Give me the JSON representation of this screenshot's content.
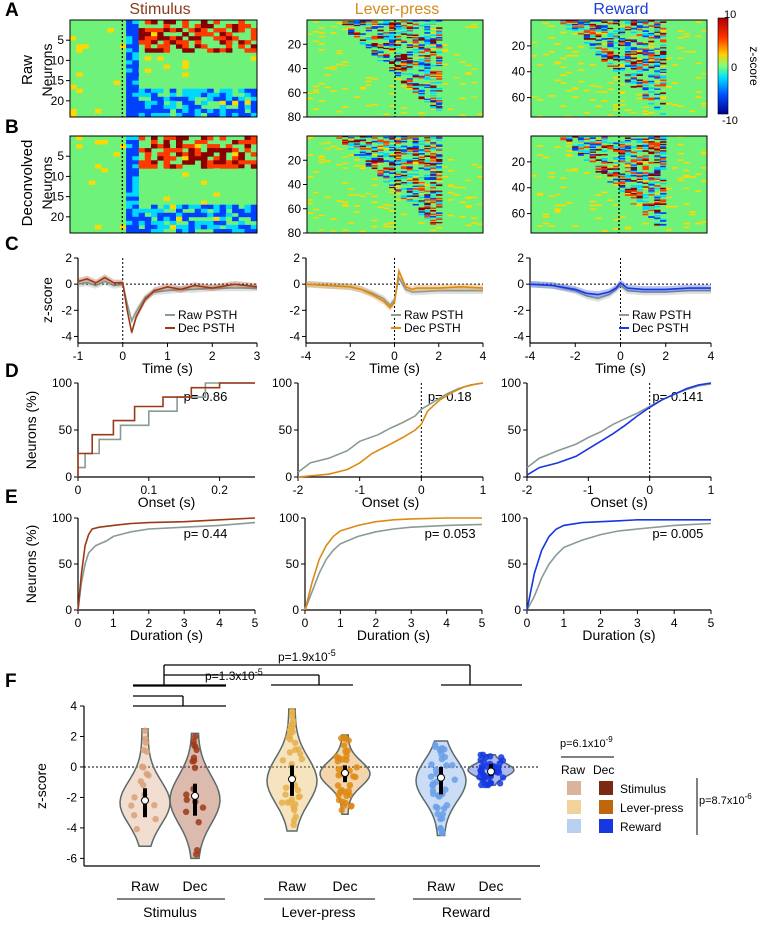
{
  "panel_letters": [
    "A",
    "B",
    "C",
    "D",
    "E",
    "F"
  ],
  "columns": [
    {
      "title": "Stimulus",
      "color": "#8b3a1a"
    },
    {
      "title": "Lever-press",
      "color": "#d68a1c"
    },
    {
      "title": "Reward",
      "color": "#1a3fd6"
    }
  ],
  "colors": {
    "raw": "#8a9a96",
    "stim_dec": "#9c3a18",
    "lever_dec": "#dd8a14",
    "reward_dec": "#1538e0",
    "stim_raw_violin": "#d9a17a",
    "lever_raw_violin": "#e6b04a",
    "reward_raw_violin": "#6a9fe6"
  },
  "row_labels": {
    "raw": "Raw",
    "deconvolved": "Deconvolved",
    "neurons": "Neurons",
    "zscore": "z-score",
    "neurons_pct": "Neurons (%)"
  },
  "colorbar": {
    "label": "z-score",
    "max": "10",
    "mid": "0",
    "min": "-10"
  },
  "heatmaps": [
    {
      "yticks": [
        "5",
        "10",
        "15",
        "20"
      ]
    },
    {
      "yticks": [
        "20",
        "40",
        "60",
        "80"
      ]
    },
    {
      "yticks": [
        "20",
        "40",
        "60"
      ]
    }
  ],
  "chart_data": [
    {
      "panel": "C",
      "type": "line",
      "title": "Stimulus",
      "xlabel": "Time (s)",
      "ylabel": "z-score",
      "xlim": [
        -1,
        3
      ],
      "ylim": [
        -4.5,
        2
      ],
      "xticks": [
        "-1",
        "0",
        "1",
        "2",
        "3"
      ],
      "yticks": [
        "2",
        "0",
        "-2",
        "-4"
      ],
      "legend": [
        "Raw PSTH",
        "Dec PSTH"
      ],
      "series": [
        {
          "name": "Raw PSTH",
          "x": [
            -1,
            -0.8,
            -0.6,
            -0.4,
            -0.2,
            0,
            0.1,
            0.2,
            0.3,
            0.5,
            0.7,
            1,
            1.3,
            1.6,
            2,
            2.5,
            3
          ],
          "y": [
            0,
            0.1,
            -0.1,
            0.2,
            -0.1,
            0,
            -1.5,
            -2.8,
            -2.1,
            -1,
            -0.6,
            -0.5,
            -0.4,
            -0.4,
            -0.3,
            -0.3,
            -0.3
          ]
        },
        {
          "name": "Dec PSTH",
          "x": [
            -1,
            -0.8,
            -0.6,
            -0.4,
            -0.2,
            0,
            0.1,
            0.2,
            0.3,
            0.5,
            0.7,
            1,
            1.3,
            1.6,
            2,
            2.5,
            3
          ],
          "y": [
            0.2,
            0.4,
            0.1,
            0.5,
            0.1,
            0.1,
            -2,
            -3.7,
            -2.5,
            -1.2,
            -0.5,
            -0.2,
            -0.4,
            -0.1,
            -0.3,
            0,
            -0.2
          ]
        }
      ]
    },
    {
      "panel": "C",
      "type": "line",
      "title": "Lever-press",
      "xlabel": "Time (s)",
      "ylabel": "",
      "xlim": [
        -4,
        4
      ],
      "ylim": [
        -4.5,
        2
      ],
      "xticks": [
        "-4",
        "-2",
        "0",
        "2",
        "4"
      ],
      "yticks": [
        "2",
        "0",
        "-2",
        "-4"
      ],
      "legend": [
        "Raw PSTH",
        "Dec PSTH"
      ],
      "series": [
        {
          "name": "Raw PSTH",
          "x": [
            -4,
            -3,
            -2,
            -1.5,
            -1,
            -0.5,
            -0.2,
            0,
            0.2,
            0.5,
            0.8,
            1,
            2,
            3,
            4
          ],
          "y": [
            0,
            -0.1,
            -0.2,
            -0.4,
            -0.7,
            -1.1,
            -1.6,
            -1.2,
            0.5,
            -0.4,
            -0.6,
            -0.6,
            -0.5,
            -0.5,
            -0.5
          ]
        },
        {
          "name": "Dec PSTH",
          "x": [
            -4,
            -3,
            -2,
            -1.5,
            -1,
            -0.5,
            -0.2,
            0,
            0.2,
            0.5,
            0.8,
            1,
            2,
            3,
            4
          ],
          "y": [
            0,
            -0.1,
            -0.2,
            -0.4,
            -0.8,
            -1.3,
            -1.8,
            -1.4,
            1,
            -0.2,
            -0.4,
            -0.3,
            -0.3,
            -0.2,
            -0.3
          ]
        }
      ]
    },
    {
      "panel": "C",
      "type": "line",
      "title": "Reward",
      "xlabel": "Time (s)",
      "ylabel": "",
      "xlim": [
        -4,
        4
      ],
      "ylim": [
        -4.5,
        2
      ],
      "xticks": [
        "-4",
        "-2",
        "0",
        "2",
        "4"
      ],
      "yticks": [
        "2",
        "0",
        "-2",
        "-4"
      ],
      "legend": [
        "Raw PSTH",
        "Dec PSTH"
      ],
      "series": [
        {
          "name": "Raw PSTH",
          "x": [
            -4,
            -3,
            -2,
            -1.5,
            -1,
            -0.5,
            -0.2,
            0,
            0.3,
            1,
            2,
            3,
            4
          ],
          "y": [
            0,
            -0.1,
            -0.5,
            -0.9,
            -1.1,
            -0.8,
            -0.4,
            -0.1,
            -0.5,
            -0.6,
            -0.6,
            -0.5,
            -0.5
          ]
        },
        {
          "name": "Dec PSTH",
          "x": [
            -4,
            -3,
            -2,
            -1.5,
            -1,
            -0.5,
            -0.2,
            0,
            0.3,
            1,
            2,
            3,
            4
          ],
          "y": [
            0,
            -0.1,
            -0.4,
            -0.7,
            -0.8,
            -0.6,
            -0.3,
            0.1,
            -0.3,
            -0.4,
            -0.4,
            -0.3,
            -0.3
          ]
        }
      ]
    },
    {
      "panel": "D",
      "type": "line",
      "title": "Stimulus",
      "xlabel": "Onset (s)",
      "ylabel": "Neurons (%)",
      "xlim": [
        0,
        0.25
      ],
      "ylim": [
        0,
        100
      ],
      "xticks": [
        "0",
        "0.1",
        "0.2"
      ],
      "xtick_vals": [
        0,
        0.1,
        0.2
      ],
      "yticks": [
        "100",
        "50",
        "0"
      ],
      "pvalue": "p= 0.86",
      "series": [
        {
          "name": "Raw",
          "x": [
            0,
            0.01,
            0.01,
            0.03,
            0.03,
            0.06,
            0.06,
            0.1,
            0.1,
            0.14,
            0.14,
            0.18,
            0.18,
            0.25
          ],
          "y": [
            10,
            10,
            25,
            25,
            40,
            40,
            55,
            55,
            70,
            70,
            85,
            85,
            100,
            100
          ]
        },
        {
          "name": "Dec",
          "x": [
            0,
            0,
            0.02,
            0.02,
            0.05,
            0.05,
            0.08,
            0.08,
            0.12,
            0.12,
            0.16,
            0.16,
            0.2,
            0.2,
            0.25
          ],
          "y": [
            0,
            25,
            25,
            45,
            45,
            60,
            60,
            75,
            75,
            85,
            85,
            95,
            95,
            100,
            100
          ]
        }
      ]
    },
    {
      "panel": "D",
      "type": "line",
      "title": "Lever-press",
      "xlabel": "Onset (s)",
      "ylabel": "",
      "xlim": [
        -2,
        1
      ],
      "ylim": [
        0,
        100
      ],
      "xticks": [
        "-2",
        "-1",
        "0",
        "1"
      ],
      "xtick_vals": [
        -2,
        -1,
        0,
        1
      ],
      "yticks": [
        "100",
        "50",
        "0"
      ],
      "pvalue": "p= 0.18",
      "series": [
        {
          "name": "Raw",
          "x": [
            -2,
            -1.8,
            -1.5,
            -1.2,
            -1,
            -0.7,
            -0.5,
            -0.3,
            -0.1,
            0,
            0.2,
            0.4,
            0.6,
            0.8,
            1
          ],
          "y": [
            5,
            15,
            20,
            28,
            38,
            45,
            52,
            58,
            65,
            72,
            80,
            88,
            94,
            98,
            100
          ]
        },
        {
          "name": "Dec",
          "x": [
            -2,
            -1.5,
            -1.2,
            -1,
            -0.8,
            -0.5,
            -0.3,
            -0.1,
            0,
            0.1,
            0.3,
            0.5,
            0.7,
            0.9,
            1
          ],
          "y": [
            0,
            3,
            8,
            15,
            25,
            35,
            42,
            50,
            56,
            70,
            82,
            90,
            96,
            99,
            100
          ]
        }
      ]
    },
    {
      "panel": "D",
      "type": "line",
      "title": "Reward",
      "xlabel": "Onset (s)",
      "ylabel": "",
      "xlim": [
        -2,
        1
      ],
      "ylim": [
        0,
        100
      ],
      "xticks": [
        "-2",
        "-1",
        "0",
        "1"
      ],
      "xtick_vals": [
        -2,
        -1,
        0,
        1
      ],
      "yticks": [
        "100",
        "50",
        "0"
      ],
      "pvalue": "p= 0.141",
      "series": [
        {
          "name": "Raw",
          "x": [
            -2,
            -1.8,
            -1.5,
            -1.2,
            -1,
            -0.8,
            -0.6,
            -0.4,
            -0.2,
            0,
            0.2,
            0.4,
            0.6,
            0.8,
            1
          ],
          "y": [
            10,
            20,
            28,
            35,
            42,
            48,
            56,
            62,
            68,
            75,
            82,
            88,
            93,
            97,
            99
          ]
        },
        {
          "name": "Dec",
          "x": [
            -2,
            -1.8,
            -1.5,
            -1.2,
            -1,
            -0.8,
            -0.6,
            -0.4,
            -0.2,
            0,
            0.2,
            0.4,
            0.6,
            0.8,
            1
          ],
          "y": [
            2,
            10,
            15,
            22,
            30,
            38,
            46,
            55,
            65,
            74,
            82,
            88,
            94,
            98,
            100
          ]
        }
      ]
    },
    {
      "panel": "E",
      "type": "line",
      "title": "Stimulus",
      "xlabel": "Duration (s)",
      "ylabel": "Neurons (%)",
      "xlim": [
        0,
        5
      ],
      "ylim": [
        0,
        100
      ],
      "xticks": [
        "0",
        "1",
        "2",
        "3",
        "4",
        "5"
      ],
      "xtick_vals": [
        0,
        1,
        2,
        3,
        4,
        5
      ],
      "yticks": [
        "100",
        "50",
        "0"
      ],
      "pvalue": "p= 0.44",
      "series": [
        {
          "name": "Raw",
          "x": [
            0,
            0.1,
            0.2,
            0.3,
            0.5,
            0.8,
            1,
            1.5,
            2,
            3,
            4,
            5
          ],
          "y": [
            0,
            30,
            50,
            62,
            70,
            75,
            80,
            85,
            88,
            90,
            92,
            95
          ]
        },
        {
          "name": "Dec",
          "x": [
            0,
            0.1,
            0.2,
            0.3,
            0.4,
            0.6,
            1,
            1.5,
            2,
            3,
            4,
            5
          ],
          "y": [
            0,
            40,
            70,
            82,
            88,
            90,
            92,
            94,
            95,
            96,
            98,
            100
          ]
        }
      ]
    },
    {
      "panel": "E",
      "type": "line",
      "title": "Lever-press",
      "xlabel": "Duration (s)",
      "ylabel": "",
      "xlim": [
        0,
        5
      ],
      "ylim": [
        0,
        100
      ],
      "xticks": [
        "0",
        "1",
        "2",
        "3",
        "4",
        "5"
      ],
      "xtick_vals": [
        0,
        1,
        2,
        3,
        4,
        5
      ],
      "yticks": [
        "100",
        "50",
        "0"
      ],
      "pvalue": "p= 0.053",
      "series": [
        {
          "name": "Raw",
          "x": [
            0,
            0.2,
            0.4,
            0.6,
            0.8,
            1,
            1.5,
            2,
            2.5,
            3,
            4,
            5
          ],
          "y": [
            0,
            20,
            40,
            55,
            65,
            72,
            80,
            85,
            88,
            90,
            92,
            93
          ]
        },
        {
          "name": "Dec",
          "x": [
            0,
            0.2,
            0.4,
            0.6,
            0.8,
            1,
            1.5,
            2,
            2.5,
            3,
            4,
            5
          ],
          "y": [
            0,
            30,
            55,
            70,
            80,
            86,
            92,
            96,
            98,
            99,
            100,
            100
          ]
        }
      ]
    },
    {
      "panel": "E",
      "type": "line",
      "title": "Reward",
      "xlabel": "Duration (s)",
      "ylabel": "",
      "xlim": [
        0,
        5
      ],
      "ylim": [
        0,
        100
      ],
      "xticks": [
        "0",
        "1",
        "2",
        "3",
        "4",
        "5"
      ],
      "xtick_vals": [
        0,
        1,
        2,
        3,
        4,
        5
      ],
      "yticks": [
        "100",
        "50",
        "0"
      ],
      "pvalue": "p= 0.005",
      "series": [
        {
          "name": "Raw",
          "x": [
            0,
            0.2,
            0.4,
            0.6,
            0.8,
            1,
            1.5,
            2,
            2.5,
            3,
            4,
            5
          ],
          "y": [
            0,
            15,
            35,
            50,
            60,
            68,
            76,
            82,
            86,
            88,
            92,
            94
          ]
        },
        {
          "name": "Dec",
          "x": [
            0,
            0.2,
            0.4,
            0.6,
            0.8,
            1,
            1.5,
            2,
            2.5,
            3,
            4,
            5
          ],
          "y": [
            0,
            40,
            65,
            80,
            88,
            92,
            95,
            96,
            97,
            98,
            98,
            98
          ]
        }
      ]
    },
    {
      "panel": "F",
      "type": "violin",
      "ylabel": "z-score",
      "ylim": [
        -6.5,
        4
      ],
      "yticks": [
        "4",
        "2",
        "0",
        "-2",
        "-4",
        "-6"
      ],
      "groups": [
        {
          "name": "Stimulus",
          "raw": {
            "label": "Raw",
            "median": -2.2,
            "q1": -3.3,
            "q3": -1.4,
            "min": -5.2,
            "max": 2.5
          },
          "dec": {
            "label": "Dec",
            "median": -1.9,
            "q1": -3.2,
            "q3": -1.1,
            "min": -6.0,
            "max": 2.2
          }
        },
        {
          "name": "Lever-press",
          "raw": {
            "label": "Raw",
            "median": -0.8,
            "q1": -1.9,
            "q3": 0.1,
            "min": -4.2,
            "max": 3.8
          },
          "dec": {
            "label": "Dec",
            "median": -0.4,
            "q1": -1.0,
            "q3": 0.1,
            "min": -3.1,
            "max": 2.1
          }
        },
        {
          "name": "Reward",
          "raw": {
            "label": "Raw",
            "median": -0.7,
            "q1": -1.8,
            "q3": 0.0,
            "min": -4.5,
            "max": 1.7
          },
          "dec": {
            "label": "Dec",
            "median": -0.3,
            "q1": -0.6,
            "q3": 0.2,
            "min": -1.2,
            "max": 0.8
          }
        }
      ],
      "comparisons": [
        "p=1.9x10-5",
        "p=1.3x10-5",
        "p=6.1x10-9",
        "p=8.7x10-6"
      ],
      "legend": {
        "raw_header": "Raw",
        "dec_header": "Dec",
        "items": [
          "Stimulus",
          "Lever-press",
          "Reward"
        ]
      }
    }
  ],
  "pvals": {
    "p19": {
      "base": "p=1.9x10",
      "exp": "-5"
    },
    "p13": {
      "base": "p=1.3x10",
      "exp": "-5"
    },
    "p61": {
      "base": "p=6.1x10",
      "exp": "-9"
    },
    "p87": {
      "base": "p=8.7x10",
      "exp": "-6"
    }
  }
}
